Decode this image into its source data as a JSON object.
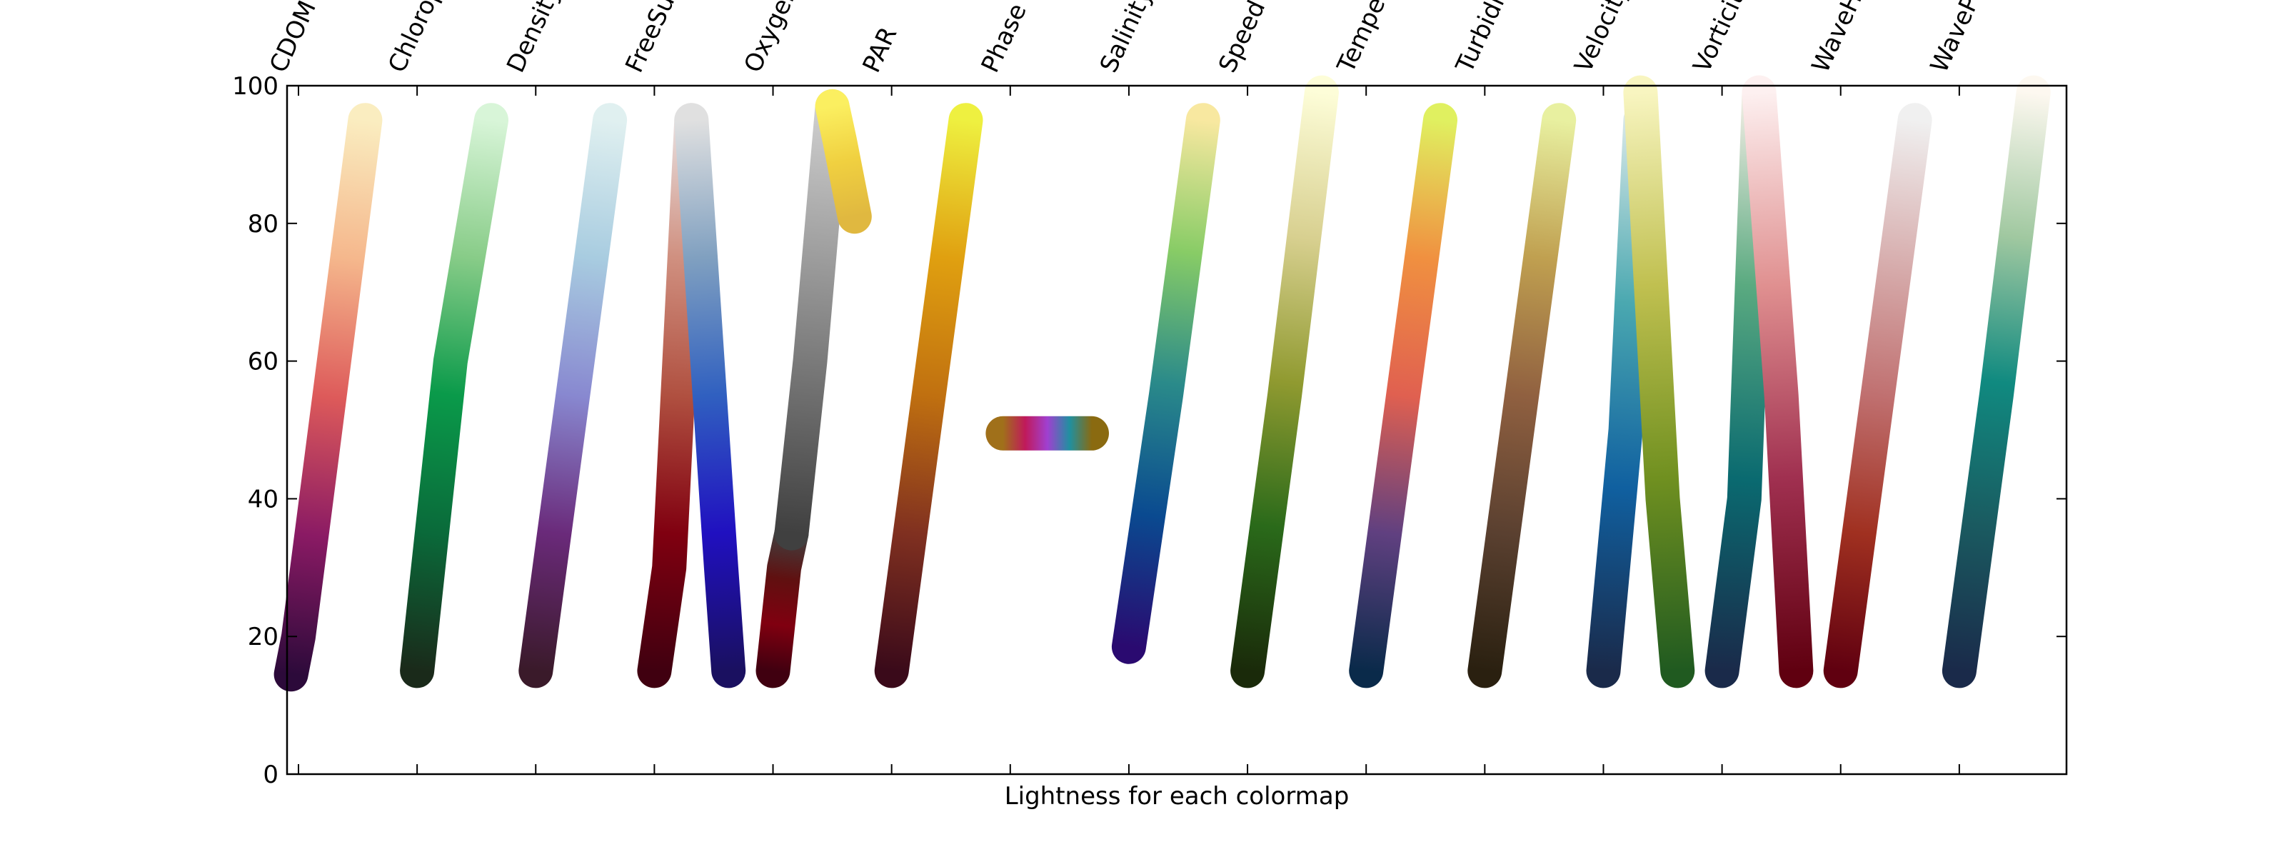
{
  "chart_data": {
    "type": "line",
    "xlabel": "Lightness for each colormap",
    "ylabel": "",
    "ylim": [
      0,
      100
    ],
    "yticks": [
      0,
      20,
      40,
      60,
      80,
      100
    ],
    "grid": false,
    "legend": "none",
    "categories": [
      "CDOM",
      "Chlorophyll",
      "Density",
      "FreeSurface",
      "Oxygen",
      "PAR",
      "Phase",
      "Salinity",
      "Speed",
      "Temperature",
      "Turbidity",
      "Velocity",
      "Vorticity",
      "WaveHeight",
      "WavePeriod"
    ],
    "series": [
      {
        "x": [
          -0.1,
          0,
          0.9
        ],
        "y": [
          14.5,
          20,
          95
        ],
        "colors": [
          "#2c0a3a",
          "#8a1a64",
          "#dd5a5a",
          "#f5b78c",
          "#faedc0"
        ]
      },
      {
        "x": [
          0,
          0.45,
          1
        ],
        "y": [
          15,
          60,
          95
        ],
        "colors": [
          "#1a2a1a",
          "#0a6a3a",
          "#0a9a4a",
          "#88cc88",
          "#d8f5d8"
        ]
      },
      {
        "x": [
          0,
          0.5,
          1
        ],
        "y": [
          15,
          55,
          95
        ],
        "colors": [
          "#3a1a2a",
          "#6a2a7a",
          "#8888d0",
          "#a8cce0",
          "#e0f0f0"
        ]
      },
      {
        "x": [
          0,
          0.2,
          0.5
        ],
        "y": [
          15,
          30,
          95
        ],
        "colors": [
          "#400010",
          "#800010",
          "#b05040",
          "#d09080",
          "#e8e0e0"
        ]
      },
      {
        "x": [
          0.5,
          0.9,
          1.0
        ],
        "y": [
          95,
          30,
          15
        ],
        "colors": [
          "#e0e0e0",
          "#80a0c0",
          "#3060c0",
          "#2010c0",
          "#1a1060"
        ]
      },
      {
        "x": [
          0,
          0.15,
          0.25
        ],
        "y": [
          15,
          30,
          35
        ],
        "colors": [
          "#400010",
          "#800010",
          "#601010",
          "#404040"
        ]
      },
      {
        "x": [
          0.25,
          0.5,
          0.8
        ],
        "y": [
          35,
          60,
          97
        ],
        "colors": [
          "#404040",
          "#707070",
          "#a0a0a0",
          "#d0d0d0"
        ]
      },
      {
        "x": [
          0.8,
          0.9,
          1.1
        ],
        "y": [
          97,
          92,
          81
        ],
        "colors": [
          "#fbef60",
          "#f0d040",
          "#e0b840"
        ]
      },
      {
        "x": [
          0,
          0.5,
          1
        ],
        "y": [
          15,
          55,
          95
        ],
        "colors": [
          "#3a0a1a",
          "#803020",
          "#c07010",
          "#e0a010",
          "#eef040"
        ]
      },
      {
        "x": [
          -0.1,
          0.3,
          0.6,
          1.1
        ],
        "y": [
          49.5,
          49.5,
          49.5,
          49.5
        ],
        "colors": [
          "#a0701a",
          "#c01a5a",
          "#a040d0",
          "#2090a0",
          "#8a6a10"
        ]
      },
      {
        "x": [
          0,
          0.5,
          1
        ],
        "y": [
          18.5,
          55,
          95
        ],
        "colors": [
          "#2a0a70",
          "#0a4a90",
          "#2a8a8a",
          "#88cc66",
          "#f8e8a0"
        ]
      },
      {
        "x": [
          0,
          0.5,
          1
        ],
        "y": [
          15,
          55,
          99
        ],
        "colors": [
          "#1a2a0a",
          "#2a6a1a",
          "#909a30",
          "#d8d090",
          "#fdfdd8"
        ]
      },
      {
        "x": [
          0,
          0.5,
          1
        ],
        "y": [
          15,
          55,
          95
        ],
        "colors": [
          "#0a2a4a",
          "#604080",
          "#e06050",
          "#f09040",
          "#e0f060"
        ]
      },
      {
        "x": [
          0,
          0.5,
          1
        ],
        "y": [
          15,
          55,
          95
        ],
        "colors": [
          "#2a2010",
          "#5a4030",
          "#906040",
          "#c0a050",
          "#e8f0a0"
        ]
      },
      {
        "x": [
          0,
          0.3,
          0.5
        ],
        "y": [
          15,
          50,
          95
        ],
        "colors": [
          "#1a2a4a",
          "#1060a0",
          "#4aa8b0",
          "#d8e8e8"
        ]
      },
      {
        "x": [
          0.5,
          0.8,
          1.0
        ],
        "y": [
          99,
          40,
          15
        ],
        "colors": [
          "#f8f5c0",
          "#c0c050",
          "#709020",
          "#205a20"
        ]
      },
      {
        "x": [
          0,
          0.3,
          0.5
        ],
        "y": [
          15,
          40,
          99
        ],
        "colors": [
          "#1a2a4a",
          "#0a6a70",
          "#5aaa80",
          "#f8f0e8"
        ]
      },
      {
        "x": [
          0.5,
          0.8,
          1.0
        ],
        "y": [
          99,
          55,
          15
        ],
        "colors": [
          "#fdf0f0",
          "#e09090",
          "#a03050",
          "#600010"
        ]
      },
      {
        "x": [
          0,
          0.5,
          1
        ],
        "y": [
          15,
          55,
          95
        ],
        "colors": [
          "#600010",
          "#a03020",
          "#c07070",
          "#d8b0b0",
          "#f0f0f0"
        ]
      },
      {
        "x": [
          0,
          0.5,
          1
        ],
        "y": [
          15,
          55,
          99
        ],
        "colors": [
          "#1a2a4a",
          "#1a5a60",
          "#108a80",
          "#a0c8a0",
          "#fdf8f0"
        ]
      }
    ]
  }
}
